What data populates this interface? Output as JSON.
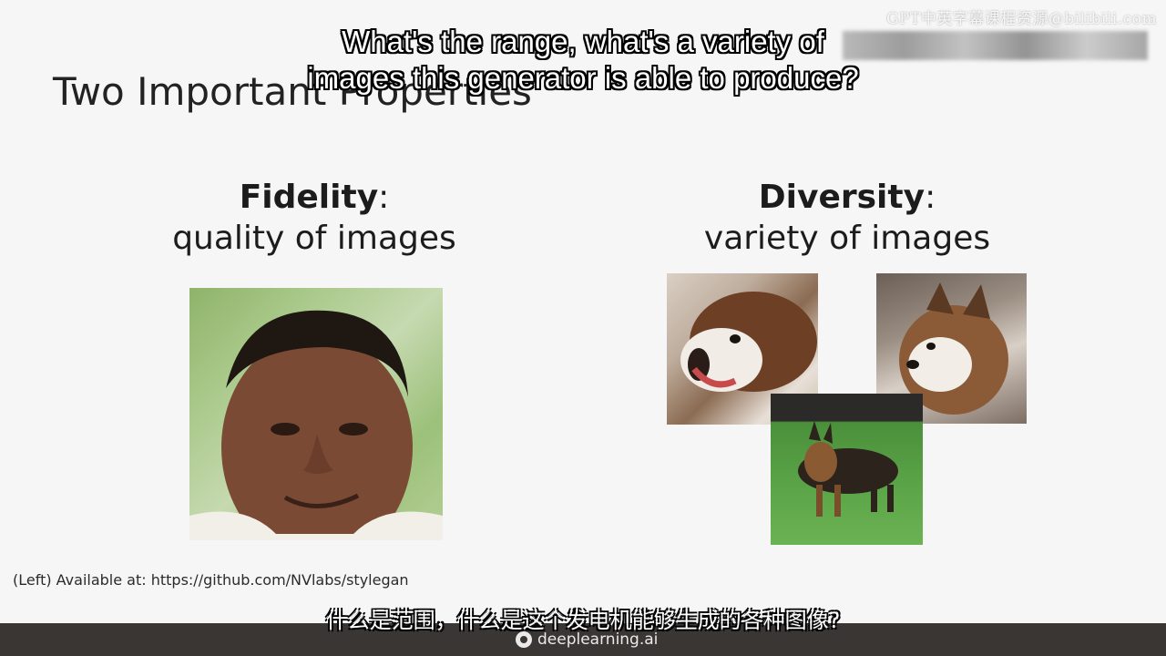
{
  "watermark": "GPT中英字幕课程资源@bilibili.com",
  "slide": {
    "title": "Two Important Properties",
    "fidelity": {
      "heading": "Fidelity",
      "colon": ":",
      "subheading": "quality of images"
    },
    "diversity": {
      "heading": "Diversity",
      "colon": ":",
      "subheading": "variety of images"
    },
    "credit": "(Left) Available at: https://github.com/NVlabs/stylegan"
  },
  "subtitles": {
    "english_line1": "What's the range, what's a variety of",
    "english_line2": "images this generator is able to produce?",
    "chinese": "什么是范围，什么是这个发电机能够生成的各种图像?"
  },
  "footer": {
    "brand": "deeplearning.ai"
  },
  "colors": {
    "background": "#f6f6f6",
    "footer": "#3a3634",
    "text": "#1c1c1c"
  }
}
